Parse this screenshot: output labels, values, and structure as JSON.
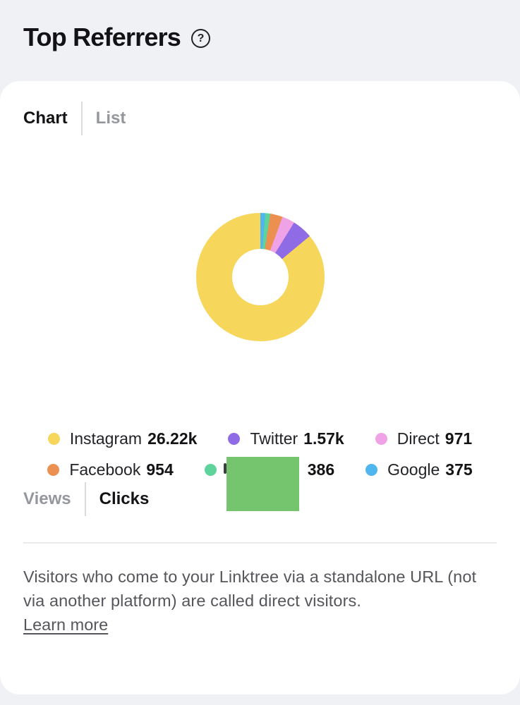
{
  "header": {
    "title": "Top Referrers"
  },
  "view_tabs": {
    "active": "Chart",
    "items": [
      "Chart",
      "List"
    ]
  },
  "metric_tabs": {
    "active": "Clicks",
    "items": [
      "Views",
      "Clicks"
    ]
  },
  "chart_data": {
    "type": "pie",
    "variant": "donut",
    "title": "Top Referrers",
    "legend_position": "bottom",
    "inner_radius_ratio": 0.44,
    "start_angle_deg": 0,
    "draw_direction": "clockwise-ascending-from-top",
    "slices": [
      {
        "label": "Google",
        "value": 375,
        "color": "#4fb6ee"
      },
      {
        "label": "",
        "value": 386,
        "color": "#5ed39b",
        "redacted": true
      },
      {
        "label": "Facebook",
        "value": 954,
        "color": "#ec9052"
      },
      {
        "label": "Direct",
        "value": 971,
        "color": "#efa3e6"
      },
      {
        "label": "Twitter",
        "value": 1570,
        "color": "#8f6ce6"
      },
      {
        "label": "Instagram",
        "value": 26220,
        "color": "#f6d65b"
      }
    ]
  },
  "legend": {
    "rows": [
      [
        {
          "label": "Instagram",
          "display_value": "26.22k",
          "color": "#f6d65b"
        },
        {
          "label": "Twitter",
          "display_value": "1.57k",
          "color": "#8f6ce6"
        },
        {
          "label": "Direct",
          "display_value": "971",
          "color": "#efa3e6"
        }
      ],
      [
        {
          "label": "Facebook",
          "display_value": "954",
          "color": "#ec9052"
        },
        {
          "label": "",
          "display_value": "386",
          "color": "#5ed39b",
          "redacted": true,
          "redaction_color": "#74c56e"
        },
        {
          "label": "Google",
          "display_value": "375",
          "color": "#4fb6ee"
        }
      ]
    ]
  },
  "footer": {
    "description": "Visitors who come to your Linktree via a standalone URL (not via another platform) are called direct visitors.",
    "link_label": "Learn more"
  },
  "colors": {
    "page_background": "#f0f1f4",
    "card_background": "#ffffff",
    "active_tab": "#131316",
    "inactive_tab": "#94979d",
    "divider": "#d8dade",
    "rule": "#e9eaec",
    "body_text": "#55565b",
    "redaction_green": "#74c56e"
  }
}
